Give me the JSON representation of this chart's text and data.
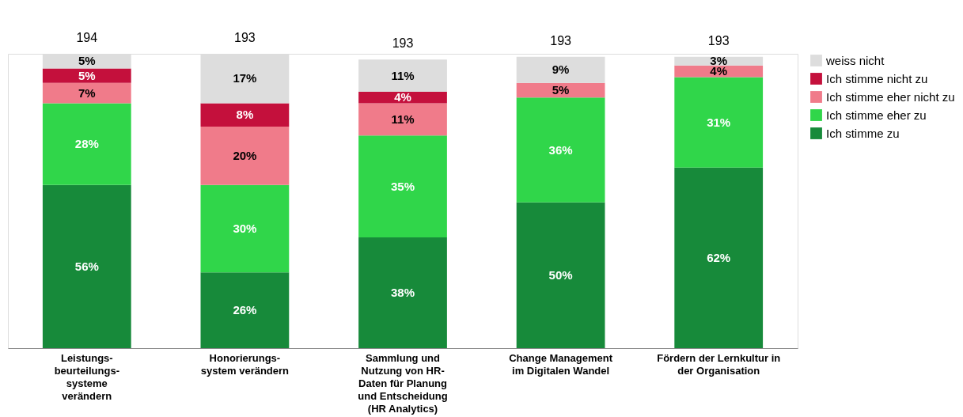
{
  "chart_data": {
    "type": "bar",
    "stacked": true,
    "tick_labels": "x",
    "legend": "top right",
    "categories": [
      "Leistungs-\nbeurteilungs-\nsysteme\nverändern",
      "Honorierungs-\nsystem verändern",
      "Sammlung und\nNutzung von HR-\nDaten für Planung\nund Entscheidung\n(HR Analytics)",
      "Change Management\nim Digitalen Wandel",
      "Fördern der Lernkultur in\nder Organisation"
    ],
    "series": [
      {
        "name": "Ich stimme zu",
        "color": "#178a3a",
        "values": [
          56,
          26,
          38,
          50,
          62
        ],
        "value_labels": [
          "56%",
          "26%",
          "38%",
          "50%",
          "62%"
        ]
      },
      {
        "name": "Ich stimme eher zu",
        "color": "#30d64a",
        "values": [
          28,
          30,
          35,
          36,
          31
        ],
        "value_labels": [
          "28%",
          "30%",
          "35%",
          "36%",
          "31%"
        ]
      },
      {
        "name": "Ich stimme eher nicht zu",
        "color": "#f07b8a",
        "values": [
          7,
          20,
          11,
          5,
          4
        ],
        "value_labels": [
          "7%",
          "20%",
          "11%",
          "5%",
          "4%"
        ]
      },
      {
        "name": "Ich stimme nicht zu",
        "color": "#c4103c",
        "values": [
          5,
          8,
          4,
          null,
          null
        ],
        "value_labels": [
          "5%",
          "8%",
          "4%",
          null,
          null
        ]
      },
      {
        "name": "weiss nicht",
        "color": "#dddddd",
        "values": [
          5,
          17,
          11,
          9,
          3
        ],
        "value_labels": [
          "5%",
          "17%",
          "11%",
          "9%",
          "3%"
        ]
      }
    ],
    "annotations": [
      "194",
      "193",
      "193",
      "193",
      "193"
    ]
  }
}
